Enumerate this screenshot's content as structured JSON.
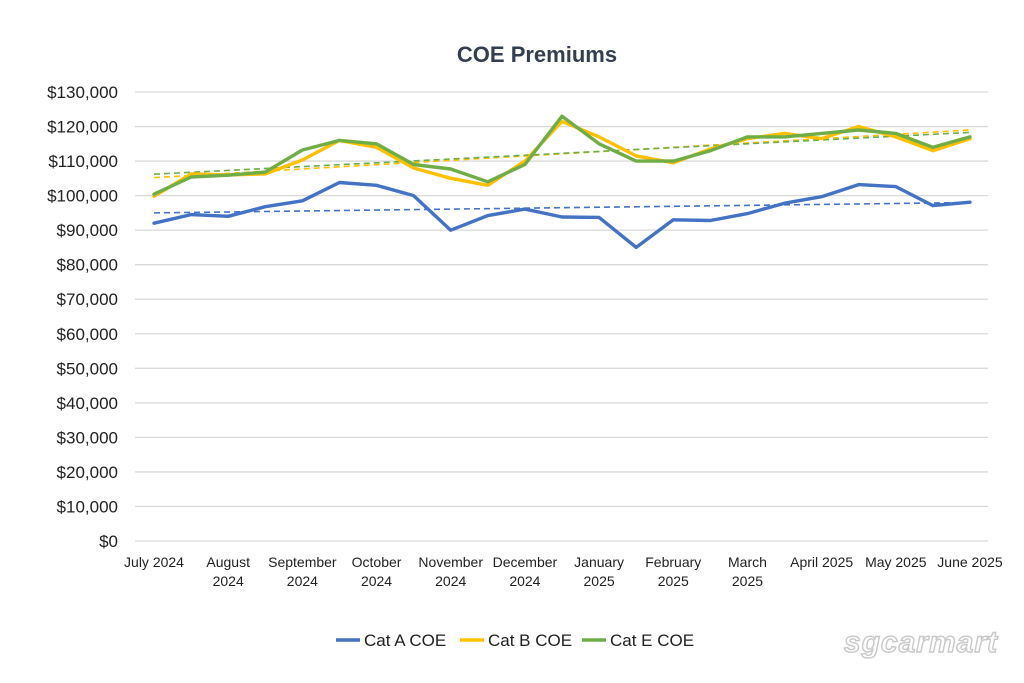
{
  "chart_data": {
    "type": "line",
    "title": "COE Premiums",
    "xlabel": "",
    "ylabel": "",
    "categories": [
      [
        "July 2024"
      ],
      [],
      [
        "August",
        "2024"
      ],
      [],
      [
        "September",
        "2024"
      ],
      [],
      [
        "October",
        "2024"
      ],
      [],
      [
        "November",
        "2024"
      ],
      [],
      [
        "December",
        "2024"
      ],
      [],
      [
        "January",
        "2025"
      ],
      [],
      [
        "February",
        "2025"
      ],
      [],
      [
        "March",
        "2025"
      ],
      [],
      [
        "April 2025"
      ],
      [],
      [
        "May 2025"
      ],
      [],
      [
        "June 2025"
      ]
    ],
    "ylim": [
      0,
      130000
    ],
    "yticks": [
      "$0",
      "$10,000",
      "$20,000",
      "$30,000",
      "$40,000",
      "$50,000",
      "$60,000",
      "$70,000",
      "$80,000",
      "$90,000",
      "$100,000",
      "$110,000",
      "$120,000",
      "$130,000"
    ],
    "grid": true,
    "legend_position": "bottom",
    "series": [
      {
        "name": "Cat A COE",
        "color": "#4472c4",
        "trendline": [
          95000,
          98000
        ],
        "values": [
          92000,
          94500,
          94000,
          96800,
          98500,
          103800,
          103000,
          100000,
          90000,
          94200,
          96100,
          93800,
          93700,
          85000,
          93000,
          92800,
          94800,
          97800,
          99700,
          103200,
          102600,
          97100,
          98100
        ]
      },
      {
        "name": "Cat B COE",
        "color": "#ffc000",
        "trendline": [
          105200,
          119000
        ],
        "values": [
          99800,
          106300,
          106000,
          106300,
          110300,
          116000,
          114000,
          108000,
          105000,
          103000,
          110000,
          121500,
          117000,
          111500,
          109500,
          113500,
          116500,
          118000,
          116500,
          120000,
          117000,
          113000,
          116500
        ]
      },
      {
        "name": "Cat E COE",
        "color": "#70ad47",
        "trendline": [
          106200,
          118300
        ],
        "values": [
          100400,
          105400,
          105900,
          106800,
          113200,
          116000,
          115000,
          109000,
          107700,
          104000,
          109000,
          123000,
          115000,
          110000,
          110000,
          113000,
          117000,
          117000,
          118000,
          119000,
          118000,
          114000,
          117000
        ]
      }
    ]
  },
  "colors": {
    "title": "#333f50",
    "grid": "#d9d9d9",
    "axis": "#d9d9d9"
  },
  "watermark": "sgcarmart"
}
